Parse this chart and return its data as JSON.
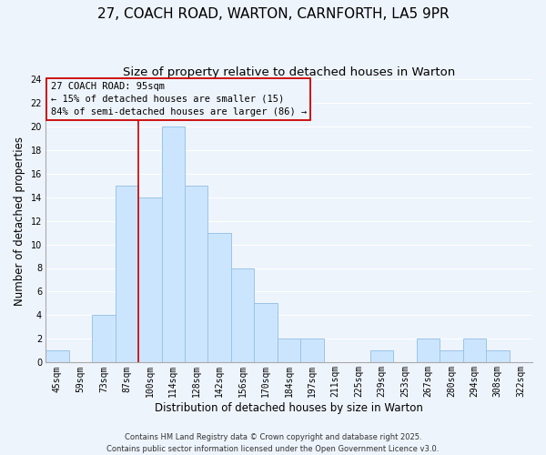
{
  "title": "27, COACH ROAD, WARTON, CARNFORTH, LA5 9PR",
  "subtitle": "Size of property relative to detached houses in Warton",
  "xlabel": "Distribution of detached houses by size in Warton",
  "ylabel": "Number of detached properties",
  "bin_labels": [
    "45sqm",
    "59sqm",
    "73sqm",
    "87sqm",
    "100sqm",
    "114sqm",
    "128sqm",
    "142sqm",
    "156sqm",
    "170sqm",
    "184sqm",
    "197sqm",
    "211sqm",
    "225sqm",
    "239sqm",
    "253sqm",
    "267sqm",
    "280sqm",
    "294sqm",
    "308sqm",
    "322sqm"
  ],
  "bar_heights": [
    1,
    0,
    4,
    15,
    14,
    20,
    15,
    11,
    8,
    5,
    2,
    2,
    0,
    0,
    1,
    0,
    2,
    1,
    2,
    1,
    0
  ],
  "bar_color": "#cce5ff",
  "bar_edge_color": "#99c4e8",
  "ylim": [
    0,
    24
  ],
  "yticks": [
    0,
    2,
    4,
    6,
    8,
    10,
    12,
    14,
    16,
    18,
    20,
    22,
    24
  ],
  "vline_x_index": 3.5,
  "vline_color": "#cc0000",
  "annotation_title": "27 COACH ROAD: 95sqm",
  "annotation_line1": "← 15% of detached houses are smaller (15)",
  "annotation_line2": "84% of semi-detached houses are larger (86) →",
  "footer_line1": "Contains HM Land Registry data © Crown copyright and database right 2025.",
  "footer_line2": "Contains public sector information licensed under the Open Government Licence v3.0.",
  "title_fontsize": 11,
  "subtitle_fontsize": 9.5,
  "axis_label_fontsize": 8.5,
  "tick_fontsize": 7,
  "annotation_fontsize": 7.5,
  "footer_fontsize": 6,
  "bg_color": "#eef4fc",
  "grid_color": "#ffffff"
}
